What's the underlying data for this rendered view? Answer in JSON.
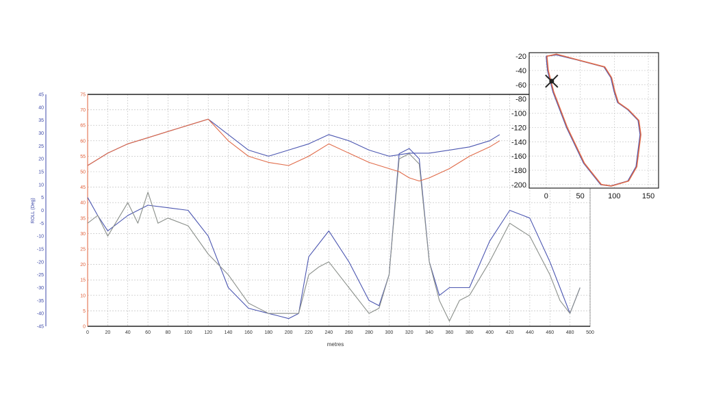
{
  "colors": {
    "roll_axis": "#3c48a8",
    "speed_axis": "#e0603a",
    "grid": "#b8b8b8",
    "series_blue": "#4a55b0",
    "series_red": "#e06a48",
    "series_gray": "#8a8f8a"
  },
  "chart_data": [
    {
      "type": "line",
      "title": "",
      "xlabel": "metres",
      "ylabel_left": "ROLL (Deg)",
      "ylabel_right": "",
      "xlim": [
        0,
        500
      ],
      "xticks": [
        0,
        20,
        40,
        60,
        80,
        100,
        120,
        140,
        160,
        180,
        200,
        220,
        240,
        260,
        280,
        300,
        320,
        340,
        360,
        380,
        400,
        420,
        440,
        460,
        480,
        500
      ],
      "ylim_roll": [
        -45,
        45
      ],
      "roll_ticks": [
        45,
        40,
        35,
        30,
        25,
        20,
        15,
        10,
        5,
        0,
        -5,
        -10,
        -15,
        -20,
        -25,
        -30,
        -35,
        -40,
        -45
      ],
      "ylim_speed": [
        0,
        75
      ],
      "speed_ticks": [
        75,
        70,
        65,
        60,
        55,
        50,
        45,
        40,
        35,
        30,
        25,
        20,
        15,
        10,
        5,
        0
      ],
      "grid": true,
      "series": [
        {
          "axis": "roll",
          "color": "series_blue",
          "x": [
            0,
            10,
            20,
            40,
            60,
            80,
            100,
            120,
            140,
            160,
            180,
            190,
            200,
            210,
            220,
            240,
            260,
            280,
            290,
            300,
            310,
            320,
            330,
            340,
            350,
            360,
            370,
            380,
            400,
            420,
            440,
            460,
            470,
            480,
            490
          ],
          "values": [
            5,
            -2,
            -8,
            -2,
            2,
            1,
            0,
            -10,
            -30,
            -38,
            -40,
            -41,
            -42,
            -40,
            -18,
            -8,
            -20,
            -35,
            -37,
            -25,
            22,
            24,
            20,
            -20,
            -33,
            -30,
            -30,
            -30,
            -12,
            0,
            -3,
            -20,
            -30,
            -40,
            -30
          ]
        },
        {
          "axis": "roll",
          "color": "series_gray",
          "x": [
            0,
            10,
            20,
            40,
            50,
            60,
            70,
            80,
            100,
            120,
            140,
            160,
            180,
            190,
            200,
            210,
            220,
            230,
            240,
            260,
            280,
            290,
            300,
            310,
            320,
            330,
            340,
            350,
            360,
            370,
            380,
            400,
            420,
            440,
            460,
            470,
            480,
            490
          ],
          "values": [
            -5,
            -2,
            -10,
            3,
            -5,
            7,
            -5,
            -3,
            -6,
            -17,
            -25,
            -36,
            -40,
            -40,
            -40,
            -40,
            -25,
            -22,
            -20,
            -30,
            -40,
            -38,
            -25,
            20,
            22,
            18,
            -20,
            -35,
            -43,
            -35,
            -33,
            -20,
            -5,
            -10,
            -25,
            -35,
            -40,
            -30
          ]
        },
        {
          "axis": "speed",
          "color": "series_blue",
          "x": [
            0,
            20,
            40,
            60,
            80,
            100,
            120,
            140,
            160,
            180,
            200,
            220,
            240,
            260,
            280,
            300,
            320,
            340,
            360,
            380,
            400,
            410
          ],
          "values": [
            52,
            56,
            59,
            61,
            63,
            65,
            67,
            62,
            57,
            55,
            57,
            59,
            62,
            60,
            57,
            55,
            56,
            56,
            57,
            58,
            60,
            62
          ]
        },
        {
          "axis": "speed",
          "color": "series_red",
          "x": [
            0,
            20,
            40,
            60,
            80,
            100,
            120,
            140,
            160,
            180,
            200,
            220,
            240,
            260,
            280,
            300,
            310,
            320,
            330,
            340,
            360,
            380,
            400,
            410
          ],
          "values": [
            52,
            56,
            59,
            61,
            63,
            65,
            67,
            60,
            55,
            53,
            52,
            55,
            59,
            56,
            53,
            51,
            50,
            48,
            47,
            48,
            51,
            55,
            58,
            60
          ]
        }
      ]
    },
    {
      "type": "line",
      "title": "",
      "xlim": [
        -25,
        165
      ],
      "ylim": [
        -205,
        -15
      ],
      "xticks": [
        0,
        50,
        100,
        150
      ],
      "yticks": [
        -20,
        -40,
        -60,
        -80,
        -100,
        -120,
        -140,
        -160,
        -180,
        -200
      ],
      "grid": true,
      "marker": {
        "x": 8,
        "y": -55,
        "symbol": "x"
      },
      "series": [
        {
          "color": "series_blue",
          "x": [
            0,
            15,
            45,
            85,
            95,
            100,
            105,
            120,
            135,
            138,
            132,
            120,
            95,
            80,
            55,
            30,
            10,
            2,
            0
          ],
          "y": [
            -20,
            -18,
            -25,
            -35,
            -50,
            -70,
            -85,
            -95,
            -110,
            -130,
            -175,
            -195,
            -202,
            -200,
            -170,
            -120,
            -70,
            -40,
            -20
          ]
        },
        {
          "color": "series_red",
          "x": [
            1,
            15,
            46,
            86,
            96,
            101,
            106,
            121,
            136,
            139,
            133,
            121,
            96,
            81,
            56,
            31,
            11,
            3,
            1
          ],
          "y": [
            -20,
            -17,
            -25,
            -35,
            -50,
            -70,
            -85,
            -95,
            -110,
            -130,
            -175,
            -195,
            -202,
            -200,
            -170,
            -120,
            -70,
            -40,
            -20
          ]
        }
      ]
    }
  ]
}
